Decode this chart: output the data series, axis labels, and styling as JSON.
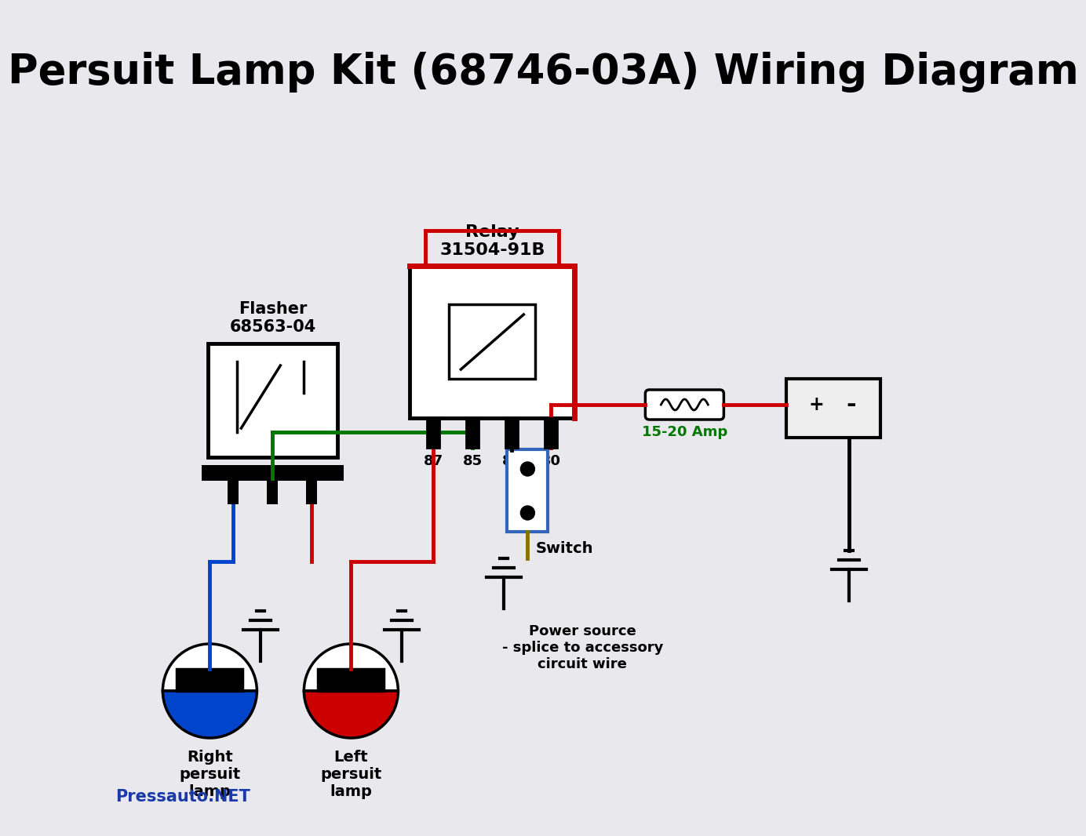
{
  "title": "Persuit Lamp Kit (68746-03A) Wiring Diagram",
  "title_fontsize": 38,
  "bg_color": "#e8e8ed",
  "watermark": "Pressauto.NET",
  "watermark_color": "#1a3aaa",
  "flasher_label": "Flasher\n68563-04",
  "relay_label": "Relay\n31504-91B",
  "switch_label": "Switch",
  "fuse_label": "15-20 Amp",
  "power_label": "Power source\n- splice to accessory\ncircuit wire",
  "right_lamp_label": "Right\npersuit\nlamp",
  "left_lamp_label": "Left\npersuit\nlamp",
  "red": "#cc0000",
  "green": "#007700",
  "blue": "#0044cc",
  "olive": "#8B7000",
  "black": "#000000",
  "white": "#ffffff",
  "switch_border": "#3366bb"
}
